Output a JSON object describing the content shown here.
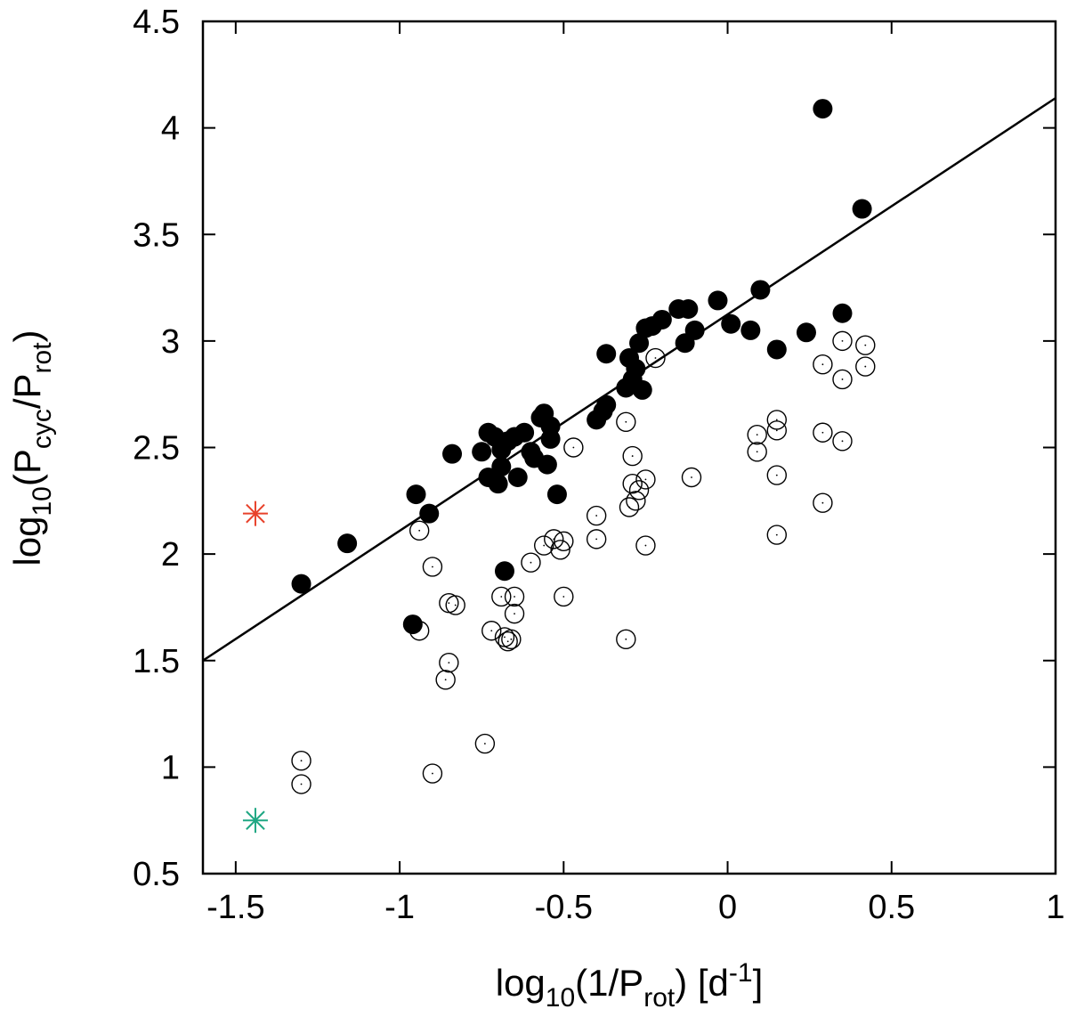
{
  "chart_data": {
    "type": "scatter",
    "title": "",
    "xlabel": {
      "main": "log",
      "sub": "10",
      "rest": "(1/P",
      "sub2": "rot",
      "rest2": ") [d",
      "sup": "-1",
      "end": "]"
    },
    "ylabel": {
      "main": "log",
      "sub": "10",
      "rest": "(P",
      "sub2": "cyc",
      "rest2": "/P",
      "sub3": "rot",
      "end": ")"
    },
    "xlim": [
      -1.6,
      1.0
    ],
    "ylim": [
      0.5,
      4.5
    ],
    "xticks": [
      -1.5,
      -1,
      -0.5,
      0,
      0.5,
      1
    ],
    "xtick_labels": [
      "-1.5",
      "-1",
      "-0.5",
      "0",
      "0.5",
      "1"
    ],
    "yticks": [
      0.5,
      1,
      1.5,
      2,
      2.5,
      3,
      3.5,
      4,
      4.5
    ],
    "ytick_labels": [
      "0.5",
      "1",
      "1.5",
      "2",
      "2.5",
      "3",
      "3.5",
      "4",
      "4.5"
    ],
    "grid": false,
    "fit_line": {
      "x": [
        -1.6,
        1.0
      ],
      "y": [
        1.5,
        4.14
      ],
      "color": "#000000"
    },
    "series": [
      {
        "name": "filled",
        "marker": "filled-circle",
        "color": "#000000",
        "points": [
          [
            -1.3,
            1.86
          ],
          [
            -1.16,
            2.05
          ],
          [
            -0.96,
            1.67
          ],
          [
            -0.95,
            2.28
          ],
          [
            -0.91,
            2.19
          ],
          [
            -0.84,
            2.47
          ],
          [
            -0.75,
            2.48
          ],
          [
            -0.73,
            2.57
          ],
          [
            -0.73,
            2.36
          ],
          [
            -0.71,
            2.55
          ],
          [
            -0.7,
            2.33
          ],
          [
            -0.69,
            2.41
          ],
          [
            -0.69,
            2.49
          ],
          [
            -0.68,
            1.92
          ],
          [
            -0.67,
            2.53
          ],
          [
            -0.65,
            2.55
          ],
          [
            -0.64,
            2.36
          ],
          [
            -0.62,
            2.57
          ],
          [
            -0.6,
            2.48
          ],
          [
            -0.59,
            2.45
          ],
          [
            -0.57,
            2.64
          ],
          [
            -0.56,
            2.66
          ],
          [
            -0.55,
            2.42
          ],
          [
            -0.54,
            2.6
          ],
          [
            -0.54,
            2.54
          ],
          [
            -0.52,
            2.28
          ],
          [
            -0.4,
            2.63
          ],
          [
            -0.38,
            2.67
          ],
          [
            -0.37,
            2.7
          ],
          [
            -0.37,
            2.94
          ],
          [
            -0.31,
            2.78
          ],
          [
            -0.3,
            2.92
          ],
          [
            -0.29,
            2.82
          ],
          [
            -0.28,
            2.87
          ],
          [
            -0.27,
            2.99
          ],
          [
            -0.26,
            2.77
          ],
          [
            -0.25,
            3.06
          ],
          [
            -0.23,
            3.07
          ],
          [
            -0.2,
            3.1
          ],
          [
            -0.15,
            3.15
          ],
          [
            -0.13,
            2.99
          ],
          [
            -0.12,
            3.15
          ],
          [
            -0.1,
            3.05
          ],
          [
            -0.03,
            3.19
          ],
          [
            0.01,
            3.08
          ],
          [
            0.07,
            3.05
          ],
          [
            0.1,
            3.24
          ],
          [
            0.15,
            2.96
          ],
          [
            0.24,
            3.04
          ],
          [
            0.29,
            4.09
          ],
          [
            0.35,
            3.13
          ],
          [
            0.41,
            3.62
          ]
        ]
      },
      {
        "name": "open",
        "marker": "open-circle-dot",
        "color": "#000000",
        "points": [
          [
            -1.3,
            1.03
          ],
          [
            -1.3,
            0.92
          ],
          [
            -0.94,
            2.11
          ],
          [
            -0.94,
            1.64
          ],
          [
            -0.9,
            1.94
          ],
          [
            -0.9,
            0.97
          ],
          [
            -0.86,
            1.41
          ],
          [
            -0.85,
            1.49
          ],
          [
            -0.85,
            1.77
          ],
          [
            -0.83,
            1.76
          ],
          [
            -0.74,
            1.11
          ],
          [
            -0.72,
            1.64
          ],
          [
            -0.69,
            1.8
          ],
          [
            -0.68,
            1.61
          ],
          [
            -0.67,
            1.59
          ],
          [
            -0.66,
            1.6
          ],
          [
            -0.65,
            1.8
          ],
          [
            -0.65,
            1.72
          ],
          [
            -0.6,
            1.96
          ],
          [
            -0.56,
            2.04
          ],
          [
            -0.53,
            2.07
          ],
          [
            -0.51,
            2.02
          ],
          [
            -0.5,
            2.06
          ],
          [
            -0.5,
            1.8
          ],
          [
            -0.47,
            2.5
          ],
          [
            -0.4,
            2.18
          ],
          [
            -0.4,
            2.07
          ],
          [
            -0.31,
            2.62
          ],
          [
            -0.31,
            1.6
          ],
          [
            -0.3,
            2.22
          ],
          [
            -0.29,
            2.33
          ],
          [
            -0.29,
            2.46
          ],
          [
            -0.28,
            2.25
          ],
          [
            -0.27,
            2.3
          ],
          [
            -0.25,
            2.35
          ],
          [
            -0.25,
            2.04
          ],
          [
            -0.22,
            2.92
          ],
          [
            -0.11,
            2.36
          ],
          [
            0.09,
            2.56
          ],
          [
            0.09,
            2.48
          ],
          [
            0.15,
            2.63
          ],
          [
            0.15,
            2.58
          ],
          [
            0.15,
            2.37
          ],
          [
            0.15,
            2.09
          ],
          [
            0.29,
            2.89
          ],
          [
            0.29,
            2.57
          ],
          [
            0.29,
            2.24
          ],
          [
            0.35,
            3.0
          ],
          [
            0.35,
            2.82
          ],
          [
            0.35,
            2.53
          ],
          [
            0.42,
            2.98
          ],
          [
            0.42,
            2.88
          ]
        ]
      },
      {
        "name": "red-star",
        "marker": "asterisk",
        "color": "#e8412a",
        "points": [
          [
            -1.44,
            2.19
          ]
        ]
      },
      {
        "name": "teal-star",
        "marker": "asterisk",
        "color": "#1fa783",
        "points": [
          [
            -1.44,
            0.75
          ]
        ]
      }
    ]
  }
}
